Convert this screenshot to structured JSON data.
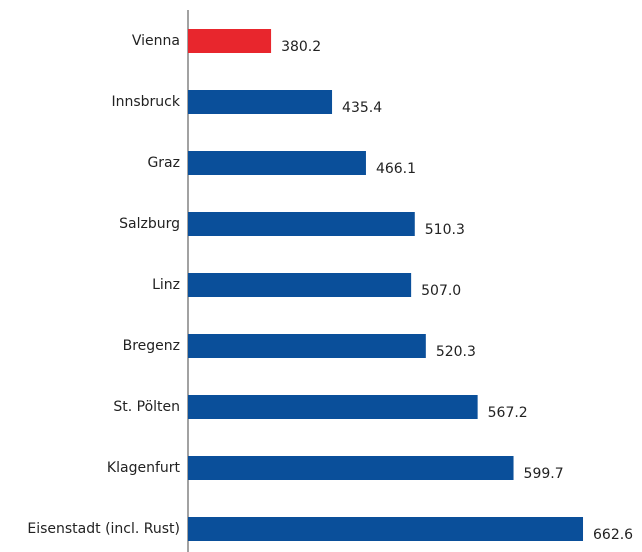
{
  "chart_data": {
    "type": "bar",
    "orientation": "horizontal",
    "categories": [
      "Vienna",
      "Innsbruck",
      "Graz",
      "Salzburg",
      "Linz",
      "Bregenz",
      "St. Pölten",
      "Klagenfurt",
      "Eisenstadt (incl. Rust)"
    ],
    "values": [
      380.2,
      435.4,
      466.1,
      510.3,
      507.0,
      520.3,
      567.2,
      599.7,
      662.6
    ],
    "value_labels": [
      "380.2",
      "435.4",
      "466.1",
      "510.3",
      "507.0",
      "520.3",
      "567.2",
      "599.7",
      "662.6"
    ],
    "colors": [
      "#e8262d",
      "#0a4f9a",
      "#0a4f9a",
      "#0a4f9a",
      "#0a4f9a",
      "#0a4f9a",
      "#0a4f9a",
      "#0a4f9a",
      "#0a4f9a"
    ],
    "xlim": [
      305,
      716
    ]
  }
}
